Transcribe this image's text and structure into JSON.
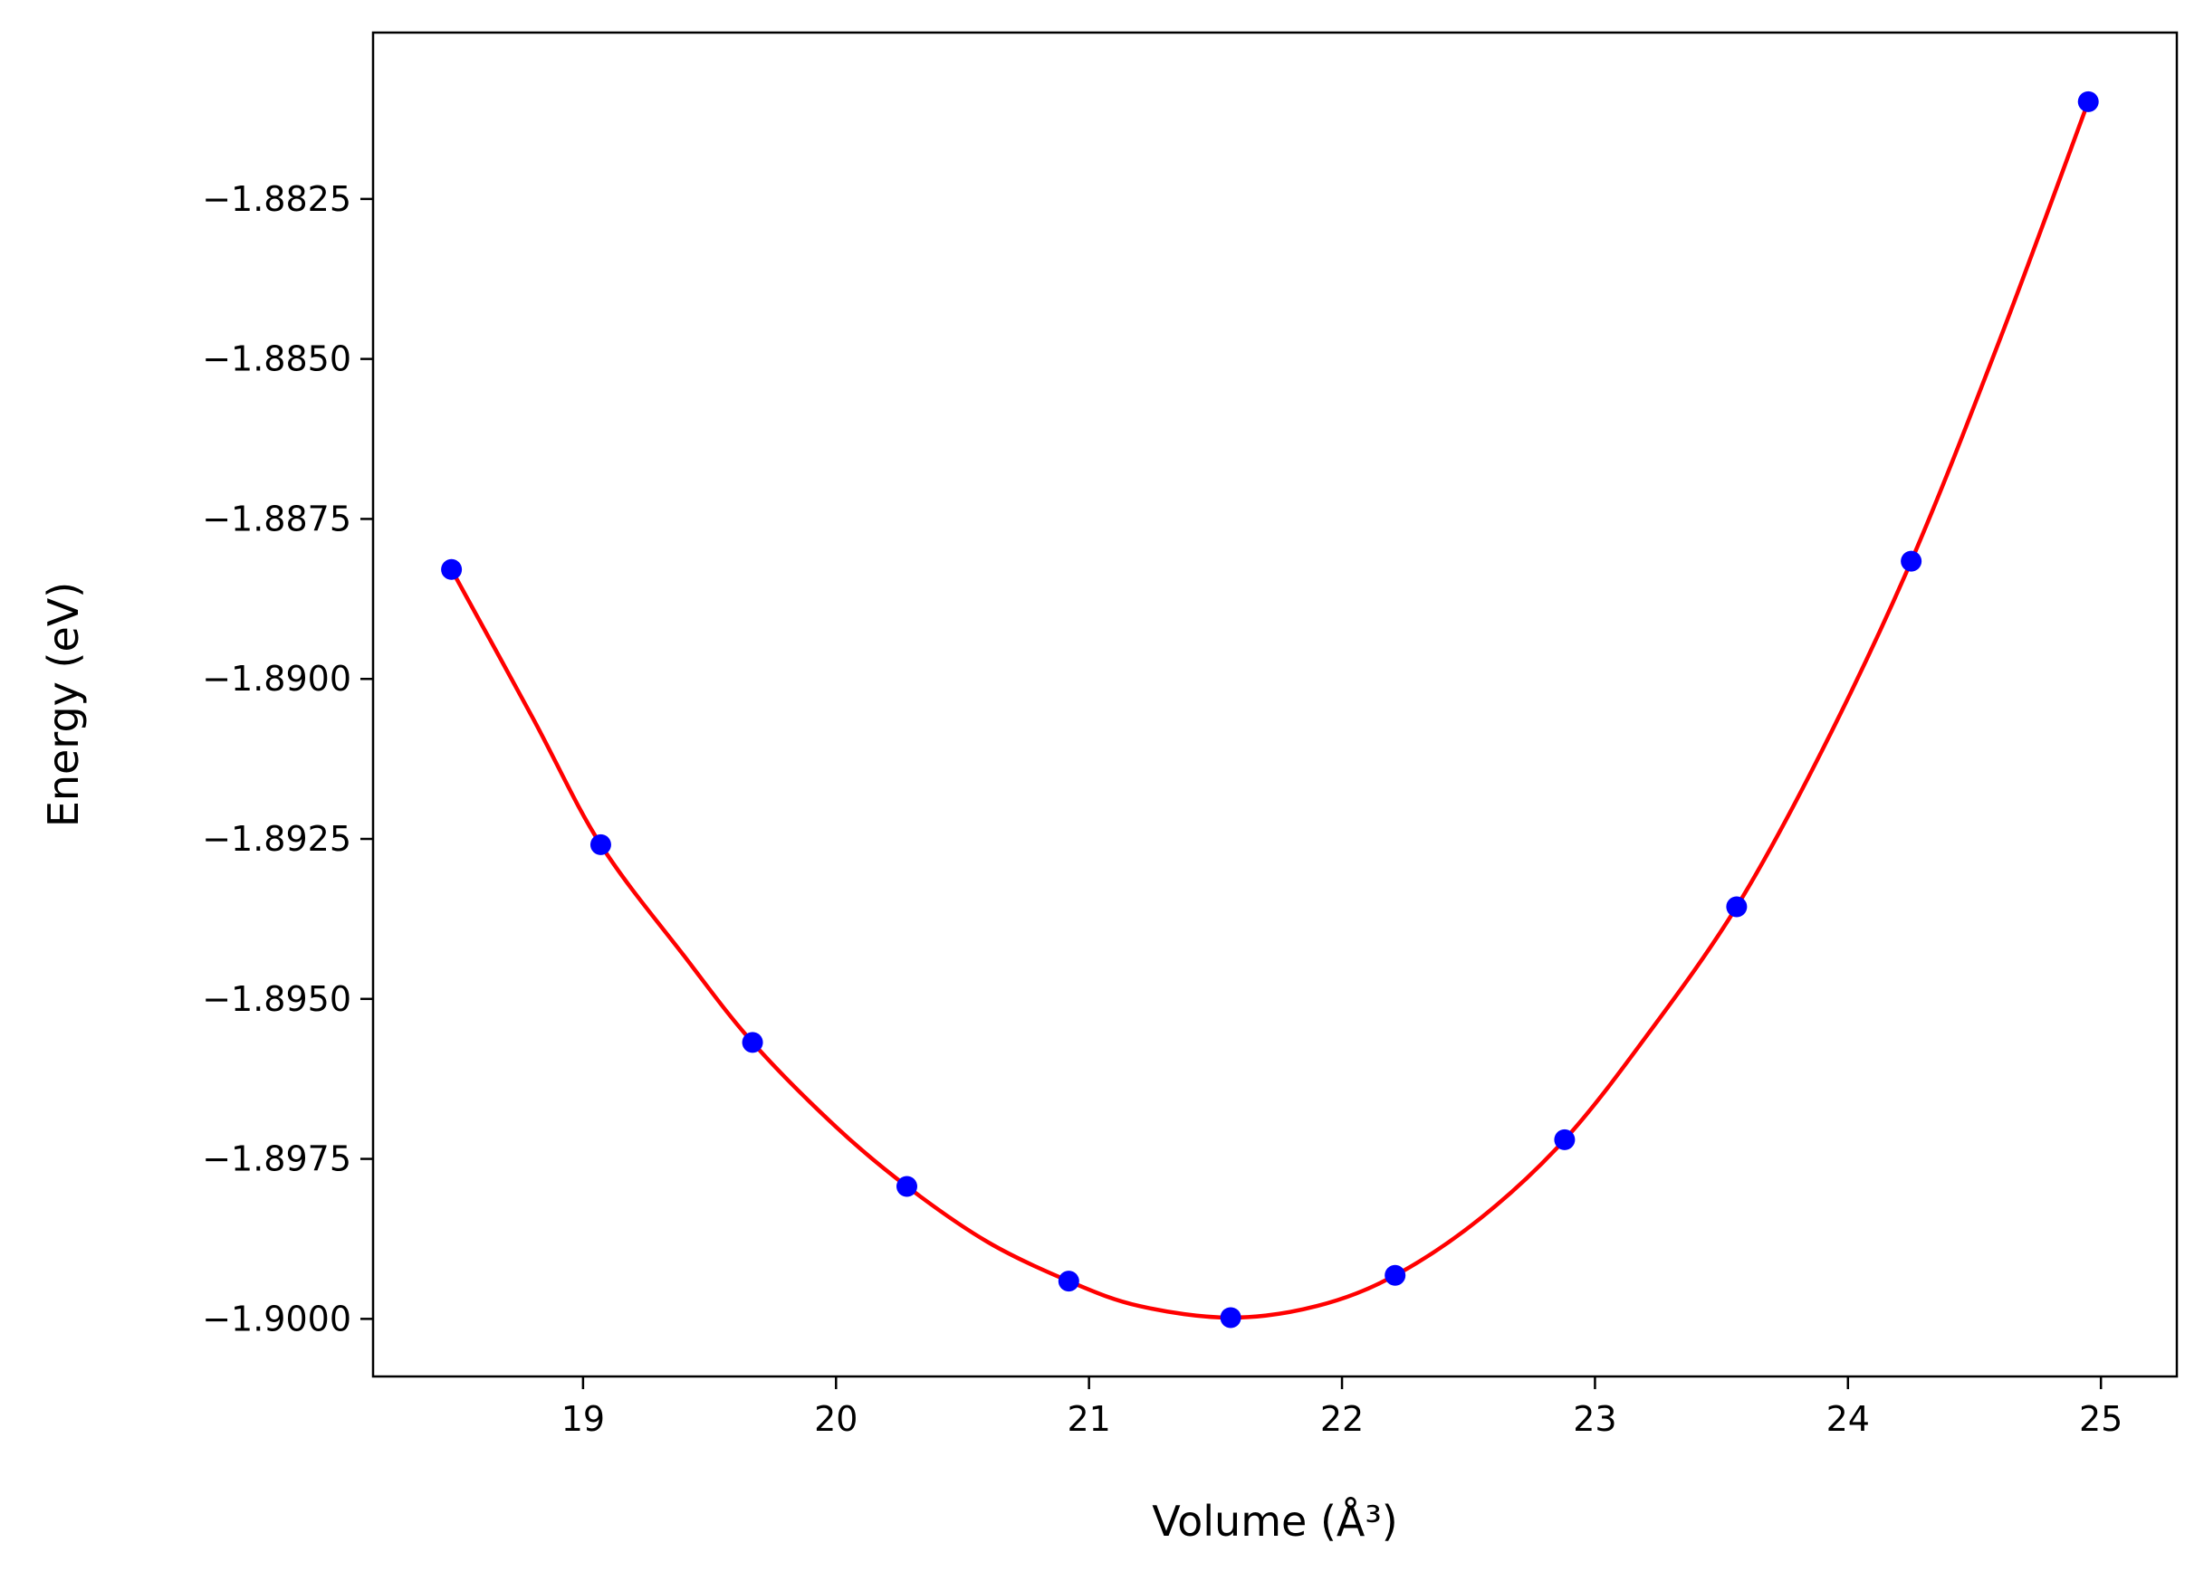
{
  "chart_data": {
    "type": "scatter",
    "xlabel": "Volume",
    "xlabel_unit": "(Å³)",
    "ylabel": "Energy",
    "ylabel_unit": "(eV)",
    "xlim": [
      18.17,
      25.3
    ],
    "ylim": [
      -1.9009,
      -1.8799
    ],
    "x_ticks": [
      19,
      20,
      21,
      22,
      23,
      24,
      25
    ],
    "x_tick_labels": [
      "19",
      "20",
      "21",
      "22",
      "23",
      "24",
      "25"
    ],
    "y_ticks": [
      -1.8825,
      -1.885,
      -1.8875,
      -1.89,
      -1.8925,
      -1.895,
      -1.8975,
      -1.9
    ],
    "y_tick_labels": [
      "−1.8825",
      "−1.8850",
      "−1.8875",
      "−1.8900",
      "−1.8925",
      "−1.8950",
      "−1.8975",
      "−1.9000"
    ],
    "grid": false,
    "series": [
      {
        "kind": "points",
        "color": "#0000ff",
        "x": [
          18.48,
          19.07,
          19.67,
          20.28,
          20.92,
          21.56,
          22.21,
          22.88,
          23.56,
          24.25,
          24.95
        ],
        "y": [
          -1.88829,
          -1.89259,
          -1.89568,
          -1.89793,
          -1.89941,
          -1.89998,
          -1.89932,
          -1.8972,
          -1.89356,
          -1.88816,
          -1.88098
        ]
      },
      {
        "kind": "fit-curve",
        "color": "#ff0000",
        "x": [
          18.48,
          18.8,
          19.07,
          19.4,
          19.67,
          20.0,
          20.28,
          20.6,
          20.92,
          21.2,
          21.56,
          21.9,
          22.21,
          22.55,
          22.88,
          23.2,
          23.56,
          23.9,
          24.25,
          24.6,
          24.95
        ],
        "y": [
          -1.88829,
          -1.8906,
          -1.89259,
          -1.89433,
          -1.89568,
          -1.897,
          -1.89793,
          -1.8988,
          -1.89941,
          -1.8998,
          -1.89998,
          -1.8998,
          -1.89932,
          -1.89842,
          -1.8972,
          -1.8956,
          -1.89356,
          -1.8911,
          -1.88816,
          -1.8847,
          -1.88098
        ]
      }
    ]
  }
}
